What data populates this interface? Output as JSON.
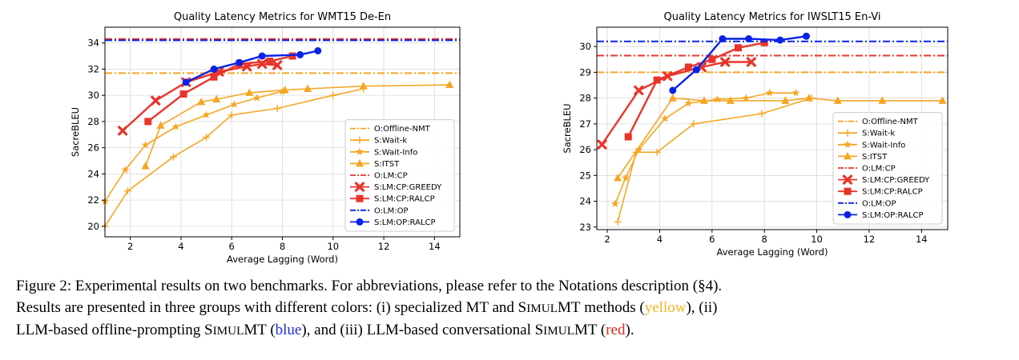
{
  "colors": {
    "yellow": "#f5a623",
    "red": "#e8352a",
    "blue": "#0a22e8"
  },
  "chart_data": [
    {
      "type": "line",
      "title": "Quality Latency Metrics for WMT15 De-En",
      "xlabel": "Average Lagging (Word)",
      "ylabel": "SacreBLEU",
      "xlim": [
        1,
        15
      ],
      "ylim": [
        19.2,
        35.2
      ],
      "xticks": [
        "2",
        "4",
        "6",
        "8",
        "10",
        "12",
        "14"
      ],
      "yticks": [
        "20",
        "22",
        "24",
        "26",
        "28",
        "30",
        "32",
        "34"
      ],
      "grid": true,
      "legend_position": "lower right",
      "series": [
        {
          "name": "O:Offline-NMT",
          "kind": "hline",
          "color": "#f5a623",
          "dash": "dashdot",
          "y": 31.7
        },
        {
          "name": "S:Wait-k",
          "kind": "line",
          "marker": "plus",
          "color": "#f5a623",
          "x": [
            1.0,
            1.9,
            3.7,
            5.0,
            6.0,
            7.8,
            10.0,
            11.2
          ],
          "y": [
            20.0,
            22.7,
            25.3,
            26.8,
            28.5,
            29.0,
            30.0,
            30.5
          ]
        },
        {
          "name": "S:Wait-Info",
          "kind": "line",
          "marker": "star",
          "color": "#f5a623",
          "x": [
            1.0,
            1.8,
            2.6,
            3.8,
            5.0,
            6.1,
            7.0,
            8.0
          ],
          "y": [
            21.9,
            24.3,
            26.2,
            27.6,
            28.5,
            29.3,
            29.8,
            30.3
          ]
        },
        {
          "name": "S:ITST",
          "kind": "line",
          "marker": "triangle",
          "color": "#f5a623",
          "x": [
            2.6,
            3.2,
            4.8,
            5.4,
            6.7,
            8.1,
            9.0,
            11.2,
            14.6
          ],
          "y": [
            24.6,
            27.7,
            29.5,
            29.7,
            30.2,
            30.4,
            30.5,
            30.7,
            30.8
          ]
        },
        {
          "name": "O:LM:CP",
          "kind": "hline",
          "color": "#e8352a",
          "dash": "dashdot",
          "y": 34.3
        },
        {
          "name": "S:LM:CP:GREEDY",
          "kind": "line",
          "marker": "x",
          "color": "#e8352a",
          "x": [
            1.7,
            3.0,
            4.2,
            5.5,
            6.6,
            7.2,
            7.8
          ],
          "y": [
            27.3,
            29.6,
            31.0,
            31.8,
            32.2,
            32.4,
            32.3
          ]
        },
        {
          "name": "S:LM:CP:RALCP",
          "kind": "line",
          "marker": "square",
          "color": "#e8352a",
          "x": [
            2.7,
            4.1,
            5.3,
            6.3,
            7.5,
            8.4
          ],
          "y": [
            28.0,
            30.1,
            31.4,
            32.4,
            32.6,
            33.0
          ]
        },
        {
          "name": "O:LM:OP",
          "kind": "hline",
          "color": "#0a22e8",
          "dash": "dashdot",
          "y": 34.2
        },
        {
          "name": "S:LM:OP:RALCP",
          "kind": "line",
          "marker": "circle",
          "color": "#0a22e8",
          "x": [
            4.2,
            5.3,
            6.3,
            7.2,
            8.7,
            9.4
          ],
          "y": [
            31.0,
            32.0,
            32.5,
            33.0,
            33.1,
            33.4
          ]
        }
      ]
    },
    {
      "type": "line",
      "title": "Quality Latency Metrics for IWSLT15 En-Vi",
      "xlabel": "Average Lagging (Word)",
      "ylabel": "SacreBLEU",
      "xlim": [
        1.6,
        15
      ],
      "ylim": [
        22.9,
        30.75
      ],
      "xticks": [
        "2",
        "4",
        "6",
        "8",
        "10",
        "12",
        "14"
      ],
      "yticks": [
        "23",
        "24",
        "25",
        "26",
        "27",
        "28",
        "29",
        "30"
      ],
      "grid": true,
      "legend_position": "lower right",
      "series": [
        {
          "name": "O:Offline-NMT",
          "kind": "hline",
          "color": "#f5a623",
          "dash": "dashdot",
          "y": 29.0
        },
        {
          "name": "S:Wait-k",
          "kind": "line",
          "marker": "plus",
          "color": "#f5a623",
          "x": [
            2.4,
            3.1,
            3.9,
            5.3,
            7.9,
            9.8
          ],
          "y": [
            23.2,
            25.9,
            25.9,
            27.0,
            27.4,
            28.0
          ]
        },
        {
          "name": "S:Wait-Info",
          "kind": "line",
          "marker": "star",
          "color": "#f5a623",
          "x": [
            2.3,
            2.7,
            3.2,
            4.2,
            5.1,
            6.2,
            7.3,
            8.2,
            9.2
          ],
          "y": [
            23.9,
            24.9,
            26.0,
            27.2,
            27.8,
            27.95,
            28.0,
            28.2,
            28.2
          ]
        },
        {
          "name": "S:ITST",
          "kind": "line",
          "marker": "triangle",
          "color": "#f5a623",
          "x": [
            2.4,
            4.5,
            5.7,
            6.7,
            8.8,
            9.7,
            10.8,
            12.5,
            14.8
          ],
          "y": [
            24.9,
            28.0,
            27.9,
            27.9,
            27.9,
            28.0,
            27.9,
            27.9,
            27.9
          ]
        },
        {
          "name": "O:LM:CP",
          "kind": "hline",
          "color": "#e8352a",
          "dash": "dashdot",
          "y": 29.65
        },
        {
          "name": "S:LM:CP:GREEDY",
          "kind": "line",
          "marker": "x",
          "color": "#e8352a",
          "x": [
            1.8,
            3.2,
            4.3,
            5.6,
            6.5,
            7.5
          ],
          "y": [
            26.2,
            28.3,
            28.85,
            29.2,
            29.4,
            29.4
          ]
        },
        {
          "name": "S:LM:CP:RALCP",
          "kind": "line",
          "marker": "square",
          "color": "#e8352a",
          "x": [
            2.8,
            3.9,
            5.1,
            6.0,
            7.0,
            8.0
          ],
          "y": [
            26.5,
            28.7,
            29.2,
            29.5,
            29.95,
            30.15
          ]
        },
        {
          "name": "O:LM:OP",
          "kind": "hline",
          "color": "#0a22e8",
          "dash": "dashdot",
          "y": 30.2
        },
        {
          "name": "S:LM:OP:RALCP",
          "kind": "line",
          "marker": "circle",
          "color": "#0a22e8",
          "x": [
            4.5,
            5.4,
            6.4,
            7.4,
            8.6,
            9.6
          ],
          "y": [
            28.3,
            29.1,
            30.3,
            30.3,
            30.25,
            30.4
          ]
        }
      ]
    }
  ],
  "caption": {
    "figure_label": "Figure 2:",
    "sentence1": "Experimental results on two benchmarks. For abbreviations, please refer to the Notations description (§4).",
    "line2_a": "Results are presented in three groups with different colors: (i) specialized MT and ",
    "simul_s": "S",
    "simul_imul": "IMUL",
    "simul_mt": "MT",
    "line2_b": " methods (",
    "yellow_word": "yellow",
    "line2_c": "), (ii)",
    "line3_a": "LLM-based offline-prompting ",
    "line3_b": " (",
    "blue_word": "blue",
    "line3_c": "), and (iii) LLM-based conversational ",
    "line3_d": " (",
    "red_word": "red",
    "line3_e": ")."
  }
}
